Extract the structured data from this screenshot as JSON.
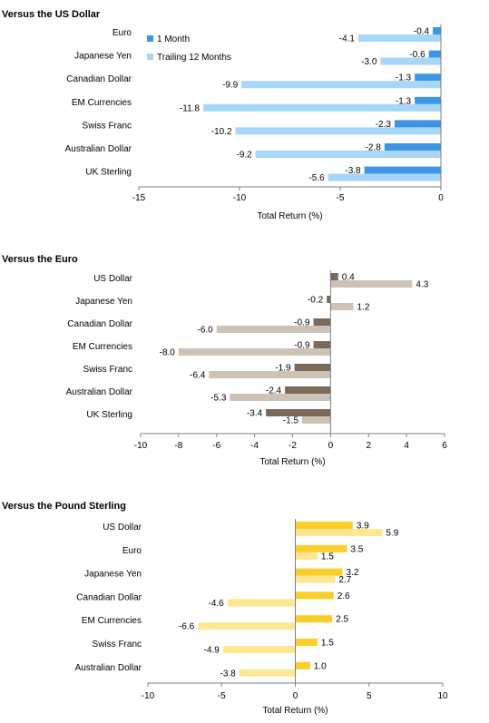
{
  "chart_data": [
    {
      "type": "bar",
      "orientation": "horizontal",
      "title": "Versus the US Dollar",
      "xlabel": "Total Return (%)",
      "xlim": [
        -15,
        0
      ],
      "xticks": [
        -15,
        -10,
        -5,
        0
      ],
      "grid": false,
      "legend": "top-left, inside",
      "categories": [
        "Euro",
        "Japanese Yen",
        "Canadian Dollar",
        "EM Currencies",
        "Swiss Franc",
        "Australian Dollar",
        "UK Sterling"
      ],
      "series": [
        {
          "name": "1 Month",
          "color": "#3c96e4",
          "values": [
            -0.4,
            -0.6,
            -1.3,
            -1.3,
            -2.3,
            -2.8,
            -3.8
          ]
        },
        {
          "name": "Trailing 12 Months",
          "color": "#a8d6f7",
          "values": [
            -4.1,
            -3.0,
            -9.9,
            -11.8,
            -10.2,
            -9.2,
            -5.6
          ]
        }
      ]
    },
    {
      "type": "bar",
      "orientation": "horizontal",
      "title": "Versus the Euro",
      "xlabel": "Total Return (%)",
      "xlim": [
        -10,
        6
      ],
      "xticks": [
        -10,
        -8,
        -6,
        -4,
        -2,
        0,
        2,
        4,
        6
      ],
      "grid": false,
      "categories": [
        "US Dollar",
        "Japanese Yen",
        "Canadian Dollar",
        "EM Currencies",
        "Swiss Franc",
        "Australian Dollar",
        "UK Sterling"
      ],
      "series": [
        {
          "color": "#7b6a5a",
          "values": [
            0.4,
            -0.2,
            -0.9,
            -0.9,
            -1.9,
            -2.4,
            -3.4
          ]
        },
        {
          "color": "#ccc2b6",
          "values": [
            4.3,
            1.2,
            -6.0,
            -8.0,
            -6.4,
            -5.3,
            -1.5
          ]
        }
      ]
    },
    {
      "type": "bar",
      "orientation": "horizontal",
      "title": "Versus the Pound Sterling",
      "xlabel": "Total Return (%)",
      "xlim": [
        -10,
        10
      ],
      "xticks": [
        -10,
        -5,
        0,
        5,
        10
      ],
      "grid": false,
      "categories": [
        "US Dollar",
        "Euro",
        "Japanese Yen",
        "Canadian Dollar",
        "EM Currencies",
        "Swiss Franc",
        "Australian Dollar"
      ],
      "series": [
        {
          "color": "#f9cd2a",
          "values": [
            3.9,
            3.5,
            3.2,
            2.6,
            2.5,
            1.5,
            1.0
          ]
        },
        {
          "color": "#fde891",
          "values": [
            5.9,
            1.5,
            2.7,
            -4.6,
            -6.6,
            -4.9,
            -3.8
          ]
        }
      ]
    }
  ]
}
